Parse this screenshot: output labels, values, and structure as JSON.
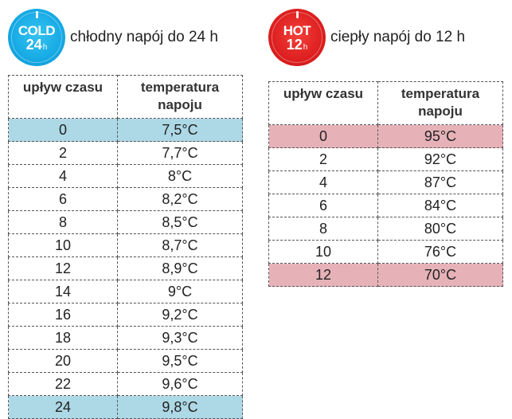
{
  "cold": {
    "badge": {
      "word": "COLD",
      "hours": "24",
      "unit": "h",
      "color": "#16a9e4"
    },
    "caption": "chłodny napój do 24 h",
    "table": {
      "headers": [
        "upływ czasu",
        "temperatura napoju"
      ],
      "rows": [
        [
          "0",
          "7,5°C"
        ],
        [
          "2",
          "7,7°C"
        ],
        [
          "4",
          "8°C"
        ],
        [
          "6",
          "8,2°C"
        ],
        [
          "8",
          "8,5°C"
        ],
        [
          "10",
          "8,7°C"
        ],
        [
          "12",
          "8,9°C"
        ],
        [
          "14",
          "9°C"
        ],
        [
          "16",
          "9,2°C"
        ],
        [
          "18",
          "9,3°C"
        ],
        [
          "20",
          "9,5°C"
        ],
        [
          "22",
          "9,6°C"
        ],
        [
          "24",
          "9,8°C"
        ]
      ],
      "highlight_rows": [
        0,
        12
      ],
      "highlight_color": "#add8e6"
    }
  },
  "hot": {
    "badge": {
      "word": "HOT",
      "hours": "12",
      "unit": "h",
      "color": "#dd1f1f"
    },
    "caption": "ciepły napój do 12 h",
    "table": {
      "headers": [
        "upływ czasu",
        "temperatura napoju"
      ],
      "rows": [
        [
          "0",
          "95°C"
        ],
        [
          "2",
          "92°C"
        ],
        [
          "4",
          "87°C"
        ],
        [
          "6",
          "84°C"
        ],
        [
          "8",
          "80°C"
        ],
        [
          "10",
          "76°C"
        ],
        [
          "12",
          "70°C"
        ]
      ],
      "highlight_rows": [
        0,
        6
      ],
      "highlight_color": "#e6b2b8"
    }
  }
}
